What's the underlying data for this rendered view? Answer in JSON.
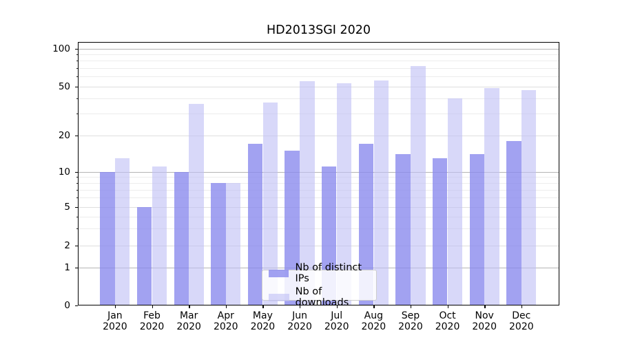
{
  "title": "HD2013SGI 2020",
  "chart_data": {
    "type": "bar",
    "title": "HD2013SGI 2020",
    "yscale": "symlog",
    "grid": true,
    "ylim": [
      0,
      130
    ],
    "yticks": [
      0,
      1,
      2,
      5,
      10,
      20,
      50,
      100
    ],
    "ytick_labels": [
      "0",
      "1",
      "2",
      "5",
      "10",
      "20",
      "50",
      "100"
    ],
    "categories": [
      "Jan 2020",
      "Feb 2020",
      "Mar 2020",
      "Apr 2020",
      "May 2020",
      "Jun 2020",
      "Jul 2020",
      "Aug 2020",
      "Sep 2020",
      "Oct 2020",
      "Nov 2020",
      "Dec 2020"
    ],
    "x_tick_labels_line1": [
      "Jan",
      "Feb",
      "Mar",
      "Apr",
      "May",
      "Jun",
      "Jul",
      "Aug",
      "Sep",
      "Oct",
      "Nov",
      "Dec"
    ],
    "x_tick_labels_line2": [
      "2020",
      "2020",
      "2020",
      "2020",
      "2020",
      "2020",
      "2020",
      "2020",
      "2020",
      "2020",
      "2020",
      "2020"
    ],
    "series": [
      {
        "name": "Nb of distinct IPs",
        "color": "#8888ed",
        "alpha": 0.78,
        "values": [
          10,
          5,
          10,
          8,
          17,
          15,
          11,
          17,
          14,
          13,
          14,
          18
        ]
      },
      {
        "name": "Nb of downloads",
        "color": "#bebef5",
        "alpha": 0.6,
        "values": [
          13,
          11,
          36,
          8,
          37,
          55,
          53,
          56,
          73,
          40,
          49,
          47
        ]
      }
    ],
    "legend": {
      "position": "lower center",
      "entries": [
        "Nb of distinct IPs",
        "Nb of downloads"
      ]
    }
  }
}
